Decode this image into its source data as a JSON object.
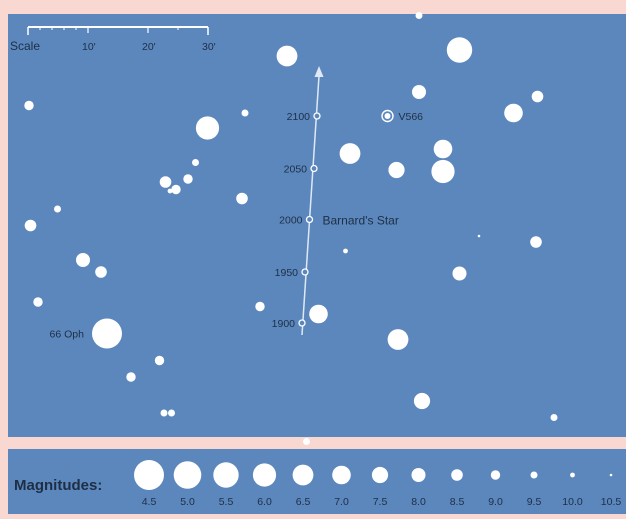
{
  "chart_data": {
    "type": "scatter",
    "title": "",
    "scale_label": "Scale",
    "scale_ticks": [
      "10'",
      "20'",
      "30'"
    ],
    "colors": {
      "sky": "#5b87bd",
      "star": "#ffffff",
      "text": "#1e2f45",
      "page": "#f8d8d0"
    },
    "path_positions": [
      {
        "year": "2100",
        "x_arcmin": 20.6,
        "y_arcmin": 6.8
      },
      {
        "year": "2050",
        "x_arcmin": 20.4,
        "y_arcmin": 10.3
      },
      {
        "year": "2000",
        "x_arcmin": 20.1,
        "y_arcmin": 13.7,
        "label": "Barnard's Star"
      },
      {
        "year": "1950",
        "x_arcmin": 19.8,
        "y_arcmin": 17.2
      },
      {
        "year": "1900",
        "x_arcmin": 19.6,
        "y_arcmin": 20.6
      }
    ],
    "named_stars": [
      {
        "name": "V566",
        "x_arcmin": 25.3,
        "y_arcmin": 6.8,
        "style": "ring"
      },
      {
        "name": "66 Oph",
        "x_arcmin": 6.6,
        "y_arcmin": 21.3,
        "magnitude": 4.5
      }
    ],
    "stars": [
      {
        "x_arcmin": 18.6,
        "y_arcmin": 2.8,
        "magnitude": 6.5
      },
      {
        "x_arcmin": 30.1,
        "y_arcmin": 2.4,
        "magnitude": 5.5
      },
      {
        "x_arcmin": 27.4,
        "y_arcmin": 0.1,
        "magnitude": 9.5
      },
      {
        "x_arcmin": 27.4,
        "y_arcmin": 5.2,
        "magnitude": 8.0
      },
      {
        "x_arcmin": 35.3,
        "y_arcmin": 5.5,
        "magnitude": 8.5
      },
      {
        "x_arcmin": 33.7,
        "y_arcmin": 6.6,
        "magnitude": 7.0
      },
      {
        "x_arcmin": 1.4,
        "y_arcmin": 6.1,
        "magnitude": 9.0
      },
      {
        "x_arcmin": 13.3,
        "y_arcmin": 7.6,
        "magnitude": 6.0
      },
      {
        "x_arcmin": 15.8,
        "y_arcmin": 6.6,
        "magnitude": 9.5
      },
      {
        "x_arcmin": 22.8,
        "y_arcmin": 9.3,
        "magnitude": 6.5
      },
      {
        "x_arcmin": 29.0,
        "y_arcmin": 9.0,
        "magnitude": 7.0
      },
      {
        "x_arcmin": 29.0,
        "y_arcmin": 10.5,
        "magnitude": 6.0
      },
      {
        "x_arcmin": 25.9,
        "y_arcmin": 10.4,
        "magnitude": 7.5
      },
      {
        "x_arcmin": 12.5,
        "y_arcmin": 9.9,
        "magnitude": 9.5
      },
      {
        "x_arcmin": 12.0,
        "y_arcmin": 11.0,
        "magnitude": 9.0
      },
      {
        "x_arcmin": 10.5,
        "y_arcmin": 11.2,
        "magnitude": 8.5
      },
      {
        "x_arcmin": 11.2,
        "y_arcmin": 11.7,
        "magnitude": 9.0
      },
      {
        "x_arcmin": 10.8,
        "y_arcmin": 11.8,
        "magnitude": 10.0
      },
      {
        "x_arcmin": 15.6,
        "y_arcmin": 12.3,
        "magnitude": 8.5
      },
      {
        "x_arcmin": 3.3,
        "y_arcmin": 13.0,
        "magnitude": 9.5
      },
      {
        "x_arcmin": 1.5,
        "y_arcmin": 14.1,
        "magnitude": 8.5
      },
      {
        "x_arcmin": 31.4,
        "y_arcmin": 14.8,
        "magnitude": 10.5
      },
      {
        "x_arcmin": 35.2,
        "y_arcmin": 15.2,
        "magnitude": 8.5
      },
      {
        "x_arcmin": 22.5,
        "y_arcmin": 15.8,
        "magnitude": 10.0
      },
      {
        "x_arcmin": 5.0,
        "y_arcmin": 16.4,
        "magnitude": 8.0
      },
      {
        "x_arcmin": 6.2,
        "y_arcmin": 17.2,
        "magnitude": 8.5
      },
      {
        "x_arcmin": 30.1,
        "y_arcmin": 17.3,
        "magnitude": 8.0
      },
      {
        "x_arcmin": 2.0,
        "y_arcmin": 19.2,
        "magnitude": 9.0
      },
      {
        "x_arcmin": 16.8,
        "y_arcmin": 19.5,
        "magnitude": 9.0
      },
      {
        "x_arcmin": 20.7,
        "y_arcmin": 20.0,
        "magnitude": 7.0
      },
      {
        "x_arcmin": 26.0,
        "y_arcmin": 21.7,
        "magnitude": 6.5
      },
      {
        "x_arcmin": 10.1,
        "y_arcmin": 23.1,
        "magnitude": 9.0
      },
      {
        "x_arcmin": 8.2,
        "y_arcmin": 24.2,
        "magnitude": 9.0
      },
      {
        "x_arcmin": 27.6,
        "y_arcmin": 25.8,
        "magnitude": 7.5
      },
      {
        "x_arcmin": 10.4,
        "y_arcmin": 26.6,
        "magnitude": 9.5
      },
      {
        "x_arcmin": 10.9,
        "y_arcmin": 26.6,
        "magnitude": 9.5
      },
      {
        "x_arcmin": 36.4,
        "y_arcmin": 26.9,
        "magnitude": 9.5
      },
      {
        "x_arcmin": 19.9,
        "y_arcmin": 28.5,
        "magnitude": 9.5
      }
    ],
    "legend": {
      "title": "Magnitudes:",
      "values": [
        "4.5",
        "5.0",
        "5.5",
        "6.0",
        "6.5",
        "7.0",
        "7.5",
        "8.0",
        "8.5",
        "9.0",
        "9.5",
        "10.0",
        "10.5"
      ]
    }
  }
}
